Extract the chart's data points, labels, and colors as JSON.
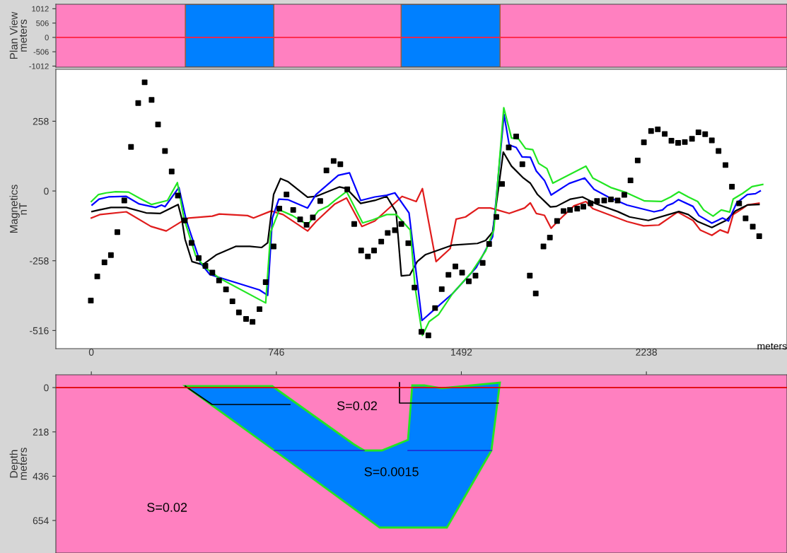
{
  "chart_data": [
    {
      "type": "line",
      "ylabel": "Plan View\nmeters",
      "xlim": [
        -143,
        2805
      ],
      "xticks": [
        0,
        746,
        1492,
        2238
      ],
      "ylim": [
        -1050,
        1170
      ],
      "yticks": [
        -1012,
        -506,
        0,
        506,
        1012
      ],
      "tick_labels": "y",
      "grid": false,
      "legend": false,
      "ref_lines": [
        {
          "axis": "y",
          "value": 0,
          "color": "#ff2040"
        }
      ],
      "bands": [
        {
          "axis": "x",
          "from": 379,
          "to": 736,
          "color": "#0080ff"
        },
        {
          "axis": "x",
          "from": 1249,
          "to": 1648,
          "color": "#0080ff"
        }
      ]
    },
    {
      "type": "line",
      "ylabel": "Magnetics\nnT",
      "xlim": [
        -143,
        2805
      ],
      "xticks": [
        0,
        746,
        1492,
        2238
      ],
      "ylim": [
        -583,
        450
      ],
      "yticks": [
        -516,
        -258,
        0,
        258
      ],
      "tick_labels": "y",
      "grid": false,
      "legend": false,
      "series": [
        {
          "type": "scatter",
          "marker": "square",
          "color": "#000000",
          "x": [
            -2,
            24,
            53,
            79,
            105,
            133,
            160,
            189,
            215,
            243,
            269,
            297,
            324,
            349,
            377,
            404,
            433,
            460,
            488,
            515,
            543,
            569,
            595,
            624,
            650,
            678,
            703,
            735,
            758,
            787,
            814,
            842,
            868,
            893,
            923,
            948,
            977,
            1004,
            1032,
            1060,
            1088,
            1115,
            1140,
            1169,
            1195,
            1224,
            1250,
            1278,
            1303,
            1331,
            1359,
            1386,
            1413,
            1440,
            1468,
            1495,
            1522,
            1549,
            1578,
            1604,
            1633,
            1656,
            1683,
            1713,
            1738,
            1768,
            1792,
            1823,
            1849,
            1878,
            1904,
            1930,
            1959,
            1984,
            2013,
            2039,
            2068,
            2095,
            2122,
            2149,
            2174,
            2203,
            2228,
            2257,
            2284,
            2312,
            2339,
            2366,
            2393,
            2422,
            2448,
            2475,
            2502,
            2529,
            2557,
            2583,
            2612,
            2638,
            2667,
            2693
          ],
          "values": [
            -405,
            -316,
            -264,
            -237,
            -152,
            -35,
            163,
            325,
            402,
            337,
            246,
            148,
            72,
            -17,
            -109,
            -192,
            -248,
            -277,
            -302,
            -331,
            -364,
            -408,
            -449,
            -473,
            -484,
            -437,
            -337,
            -205,
            -65,
            -13,
            -70,
            -105,
            -125,
            -98,
            -37,
            76,
            111,
            99,
            6,
            -122,
            -220,
            -242,
            -220,
            -187,
            -155,
            -145,
            -122,
            -193,
            -357,
            -521,
            -534,
            -433,
            -363,
            -310,
            -279,
            -302,
            -334,
            -313,
            -266,
            -196,
            -96,
            26,
            161,
            202,
            99,
            -313,
            -379,
            -205,
            -172,
            -111,
            -74,
            -70,
            -65,
            -58,
            -46,
            -37,
            -35,
            -31,
            -35,
            -14,
            39,
            113,
            180,
            222,
            228,
            211,
            186,
            178,
            181,
            193,
            217,
            210,
            187,
            148,
            96,
            16,
            -46,
            -101,
            -132,
            -167
          ]
        },
        {
          "type": "line",
          "color": "#e01c1c",
          "x": [
            0,
            36,
            141,
            240,
            302,
            364,
            392,
            488,
            516,
            630,
            654,
            725,
            773,
            872,
            906,
            982,
            1029,
            1091,
            1143,
            1253,
            1310,
            1335,
            1390,
            1447,
            1471,
            1509,
            1561,
            1609,
            1637,
            1685,
            1747,
            1770,
            1794,
            1827,
            1854,
            1884,
            1946,
            1994,
            2022,
            2094,
            2160,
            2227,
            2288,
            2364,
            2426,
            2455,
            2502,
            2535,
            2567,
            2588,
            2626,
            2645,
            2692
          ],
          "values": [
            -100,
            -87,
            -77,
            -131,
            -148,
            -113,
            -100,
            -93,
            -85,
            -91,
            -100,
            -74,
            -87,
            -148,
            -113,
            -48,
            -26,
            -131,
            -111,
            -20,
            -39,
            9,
            -261,
            -213,
            -104,
            -96,
            -63,
            -63,
            -70,
            -83,
            -63,
            -44,
            -83,
            -90,
            -138,
            -109,
            -55,
            -39,
            -65,
            -90,
            -113,
            -129,
            -126,
            -78,
            -109,
            -144,
            -164,
            -144,
            -155,
            -87,
            -65,
            -52,
            -45
          ]
        },
        {
          "type": "line",
          "color": "#000000",
          "x": [
            3,
            31,
            79,
            141,
            221,
            278,
            307,
            350,
            364,
            378,
            406,
            449,
            506,
            582,
            639,
            687,
            711,
            735,
            763,
            792,
            872,
            906,
            1001,
            1029,
            1086,
            1143,
            1191,
            1229,
            1250,
            1284,
            1314,
            1348,
            1457,
            1557,
            1590,
            1618,
            1661,
            1694,
            1742,
            1770,
            1799,
            1851,
            1875,
            1932,
            1980,
            2037,
            2122,
            2170,
            2246,
            2369,
            2407,
            2445,
            2502,
            2559,
            2597,
            2645,
            2692
          ],
          "values": [
            -76,
            -70,
            -61,
            -61,
            -81,
            -83,
            -70,
            -50,
            -100,
            -179,
            -261,
            -273,
            -235,
            -205,
            -205,
            -209,
            -192,
            -13,
            46,
            35,
            -23,
            -20,
            15,
            9,
            -46,
            -35,
            -20,
            -78,
            -314,
            -311,
            -261,
            -235,
            -200,
            -194,
            -183,
            -152,
            144,
            92,
            48,
            29,
            -13,
            -59,
            -57,
            -30,
            -22,
            -48,
            -76,
            -96,
            -109,
            -76,
            -87,
            -113,
            -135,
            -109,
            -74,
            -52,
            -50
          ]
        },
        {
          "type": "line",
          "color": "#0000ff",
          "x": [
            3,
            31,
            69,
            141,
            193,
            259,
            283,
            297,
            353,
            383,
            440,
            478,
            678,
            711,
            730,
            756,
            792,
            872,
            906,
            996,
            1041,
            1086,
            1143,
            1191,
            1224,
            1281,
            1333,
            1381,
            1457,
            1552,
            1618,
            1664,
            1685,
            1713,
            1737,
            1770,
            1794,
            1827,
            1854,
            1927,
            1989,
            2027,
            2084,
            2160,
            2269,
            2303,
            2322,
            2345,
            2367,
            2426,
            2450,
            2502,
            2545,
            2569,
            2602,
            2645,
            2678,
            2697
          ],
          "values": [
            -52,
            -30,
            -22,
            -20,
            -48,
            -61,
            -52,
            -58,
            13,
            -109,
            -266,
            -309,
            -366,
            -386,
            -100,
            -30,
            -32,
            -63,
            -13,
            58,
            67,
            -35,
            -22,
            -16,
            -7,
            -81,
            -479,
            -440,
            -379,
            -283,
            -170,
            283,
            170,
            161,
            126,
            125,
            74,
            39,
            -15,
            28,
            48,
            6,
            -22,
            -52,
            -77,
            -70,
            -54,
            -46,
            -32,
            -57,
            -91,
            -119,
            -100,
            -111,
            -44,
            -13,
            -10,
            0
          ]
        },
        {
          "type": "line",
          "color": "#22e622",
          "x": [
            0,
            29,
            60,
            98,
            150,
            193,
            243,
            307,
            347,
            373,
            421,
            459,
            516,
            703,
            723,
            758,
            811,
            872,
            915,
            953,
            982,
            1029,
            1094,
            1134,
            1191,
            1229,
            1286,
            1305,
            1335,
            1362,
            1400,
            1457,
            1533,
            1590,
            1623,
            1663,
            1694,
            1723,
            1751,
            1780,
            1804,
            1837,
            1861,
            1994,
            2022,
            2094,
            2151,
            2231,
            2298,
            2336,
            2369,
            2407,
            2445,
            2469,
            2507,
            2540,
            2574,
            2588,
            2626,
            2664,
            2707
          ],
          "values": [
            -39,
            -13,
            -7,
            -3,
            -4,
            -26,
            -50,
            -35,
            31,
            -100,
            -240,
            -283,
            -322,
            -414,
            -152,
            -70,
            -91,
            -125,
            -74,
            -57,
            -35,
            -2,
            -118,
            -107,
            -87,
            -87,
            -144,
            -353,
            -534,
            -483,
            -457,
            -379,
            -301,
            -222,
            -144,
            308,
            196,
            192,
            157,
            153,
            102,
            83,
            29,
            92,
            48,
            13,
            -4,
            -37,
            -39,
            -22,
            -3,
            -22,
            -39,
            -70,
            -93,
            -70,
            -78,
            -30,
            -9,
            16,
            24
          ]
        }
      ]
    },
    {
      "type": "line",
      "xlabel": "meters",
      "ylabel": "Depth\nmeters",
      "xlim": [
        -143,
        2805
      ],
      "xticks": [
        0,
        746,
        1492,
        2238
      ],
      "ylim": [
        814,
        -63
      ],
      "yticks": [
        0,
        218,
        436,
        654
      ],
      "grid": false,
      "legend": false,
      "ref_lines": [
        {
          "axis": "y",
          "value": 0,
          "color": "#e00000"
        }
      ],
      "annotations": [
        "S=0.02",
        "S=0.0015",
        "S=0.02"
      ]
    }
  ]
}
